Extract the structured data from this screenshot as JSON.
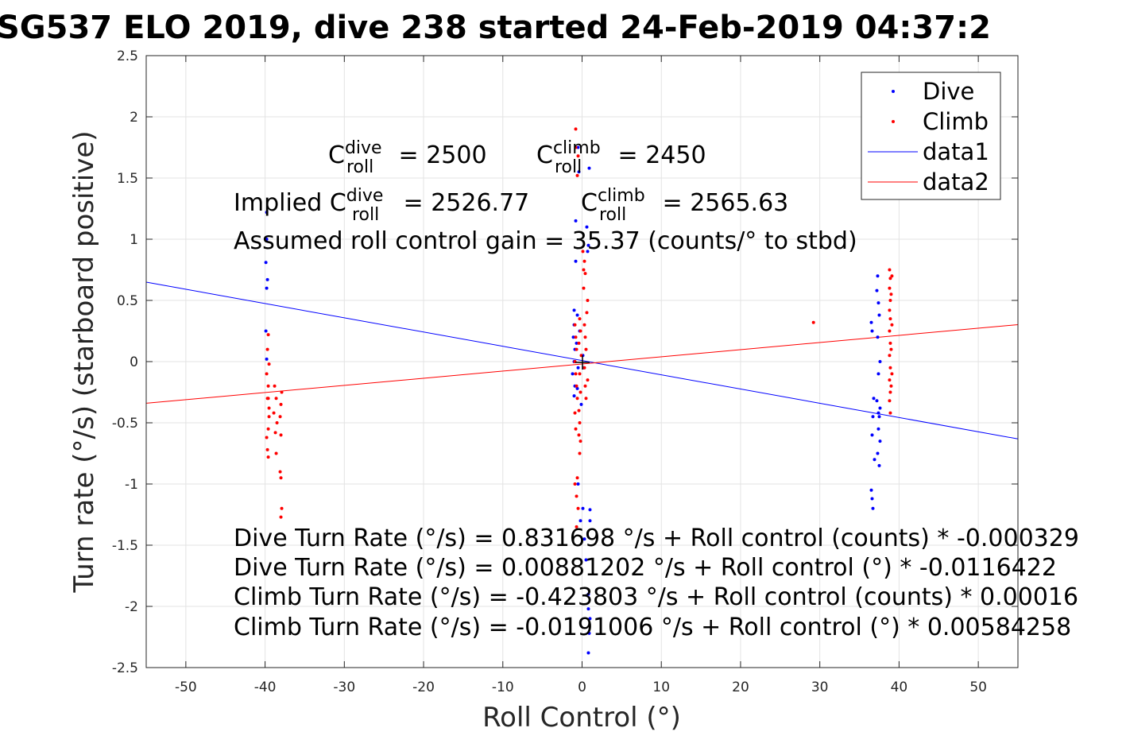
{
  "chart_data": {
    "type": "scatter",
    "title": "SG537 ELO 2019, dive 238 started 24-Feb-2019 04:37:2",
    "xlabel": "Roll Control (°)",
    "ylabel": "Turn rate (°/s) (starboard positive)",
    "xlim": [
      -55,
      55
    ],
    "ylim": [
      -2.5,
      2.5
    ],
    "grid": true,
    "legend_placement": "top-right",
    "x_ticks": [
      "-50",
      "-40",
      "-30",
      "-20",
      "-10",
      "0",
      "10",
      "20",
      "30",
      "40",
      "50"
    ],
    "y_ticks": [
      "2.5",
      "2",
      "1.5",
      "1",
      "0.5",
      "0",
      "-0.5",
      "-1",
      "-1.5",
      "-2",
      "-2.5"
    ],
    "series": [
      {
        "name": "Dive",
        "color": "#0000ff",
        "marker": "point",
        "points": [
          [
            -39.8,
            1.22
          ],
          [
            -39.8,
            1.0
          ],
          [
            -39.9,
            0.81
          ],
          [
            -39.7,
            0.67
          ],
          [
            -39.8,
            0.6
          ],
          [
            -39.9,
            0.25
          ],
          [
            -39.8,
            0.02
          ],
          [
            -1.0,
            0.42
          ],
          [
            -1.0,
            0.3
          ],
          [
            -1.1,
            0.2
          ],
          [
            -0.9,
            0.1
          ],
          [
            -1.0,
            0.0
          ],
          [
            -1.2,
            -0.1
          ],
          [
            -0.9,
            -0.2
          ],
          [
            -1.0,
            -0.28
          ],
          [
            -0.6,
            0.38
          ],
          [
            -0.7,
            0.15
          ],
          [
            -0.5,
            -0.05
          ],
          [
            -0.6,
            -0.22
          ],
          [
            -0.8,
            1.15
          ],
          [
            -0.8,
            0.82
          ],
          [
            -0.5,
            1.75
          ],
          [
            -0.4,
            1.55
          ],
          [
            0.6,
            1.1
          ],
          [
            0.8,
            0.95
          ],
          [
            0.7,
            0.9
          ],
          [
            0.9,
            1.58
          ],
          [
            -0.5,
            -1.0
          ],
          [
            -0.2,
            -1.3
          ],
          [
            0.1,
            -1.2
          ],
          [
            0.3,
            -1.45
          ],
          [
            0.5,
            -1.62
          ],
          [
            0.8,
            -1.9
          ],
          [
            0.8,
            -2.02
          ],
          [
            1.0,
            -2.1
          ],
          [
            0.9,
            -2.22
          ],
          [
            0.8,
            -2.38
          ],
          [
            1.0,
            -1.21
          ],
          [
            1.0,
            -1.3
          ],
          [
            0.1,
            0.05
          ],
          [
            0.2,
            -0.05
          ],
          [
            -0.1,
            -0.35
          ],
          [
            -0.3,
            0.25
          ],
          [
            36.6,
            0.25
          ],
          [
            36.5,
            0.32
          ],
          [
            36.8,
            -0.3
          ],
          [
            36.7,
            -0.45
          ],
          [
            36.6,
            -0.6
          ],
          [
            36.9,
            -0.8
          ],
          [
            36.5,
            -1.05
          ],
          [
            36.6,
            -1.12
          ],
          [
            36.7,
            -1.2
          ],
          [
            37.3,
            0.7
          ],
          [
            37.2,
            0.58
          ],
          [
            37.4,
            0.48
          ],
          [
            37.5,
            0.38
          ],
          [
            37.3,
            0.2
          ],
          [
            37.6,
            0.0
          ],
          [
            37.4,
            -0.1
          ],
          [
            37.2,
            -0.32
          ],
          [
            37.5,
            -0.45
          ],
          [
            37.4,
            -0.55
          ],
          [
            37.6,
            -0.65
          ],
          [
            37.3,
            -0.75
          ],
          [
            37.5,
            -0.85
          ],
          [
            37.4,
            -0.42
          ],
          [
            37.6,
            -0.38
          ]
        ]
      },
      {
        "name": "Climb",
        "color": "#ff0000",
        "marker": "point",
        "points": [
          [
            -39.6,
            0.22
          ],
          [
            -39.7,
            0.1
          ],
          [
            -39.5,
            -0.02
          ],
          [
            -39.8,
            -0.1
          ],
          [
            -39.6,
            -0.2
          ],
          [
            -39.7,
            -0.3
          ],
          [
            -39.5,
            -0.38
          ],
          [
            -39.6,
            -0.55
          ],
          [
            -39.8,
            -0.62
          ],
          [
            -39.7,
            -0.72
          ],
          [
            -39.6,
            -0.78
          ],
          [
            -39.5,
            -0.45
          ],
          [
            -39.6,
            -0.3
          ],
          [
            -38.8,
            -0.2
          ],
          [
            -38.6,
            -0.3
          ],
          [
            -38.9,
            -0.42
          ],
          [
            -38.5,
            -0.5
          ],
          [
            -38.7,
            -0.58
          ],
          [
            -38.6,
            -0.75
          ],
          [
            -38.0,
            -0.35
          ],
          [
            -38.1,
            -0.45
          ],
          [
            -37.9,
            -0.25
          ],
          [
            -38.0,
            -0.6
          ],
          [
            -38.1,
            -0.9
          ],
          [
            -38.0,
            -0.95
          ],
          [
            -37.9,
            -1.2
          ],
          [
            -38.0,
            -1.27
          ],
          [
            -0.9,
            0.3
          ],
          [
            -0.8,
            0.2
          ],
          [
            -0.7,
            0.1
          ],
          [
            -0.9,
            0.0
          ],
          [
            -0.8,
            -0.1
          ],
          [
            -0.7,
            -0.2
          ],
          [
            -0.6,
            -0.3
          ],
          [
            -0.9,
            -0.42
          ],
          [
            -0.8,
            -0.55
          ],
          [
            -0.3,
            0.35
          ],
          [
            -0.2,
            0.25
          ],
          [
            -0.4,
            0.15
          ],
          [
            -0.1,
            0.05
          ],
          [
            -0.3,
            -0.1
          ],
          [
            -0.2,
            -0.25
          ],
          [
            -0.4,
            -0.4
          ],
          [
            -0.3,
            -0.5
          ],
          [
            0.3,
            0.3
          ],
          [
            0.4,
            0.2
          ],
          [
            0.5,
            0.1
          ],
          [
            0.3,
            -0.05
          ],
          [
            0.4,
            -0.2
          ],
          [
            0.5,
            -0.3
          ],
          [
            0.6,
            0.4
          ],
          [
            0.7,
            0.5
          ],
          [
            0.7,
            -0.15
          ],
          [
            0.2,
            0.6
          ],
          [
            0.2,
            0.75
          ],
          [
            0.1,
            0.9
          ],
          [
            0.4,
            0.72
          ],
          [
            0.3,
            0.82
          ],
          [
            -0.8,
            1.9
          ],
          [
            -0.8,
            1.75
          ],
          [
            -0.6,
            1.52
          ],
          [
            -0.5,
            1.68
          ],
          [
            -0.4,
            -0.6
          ],
          [
            -0.3,
            -0.75
          ],
          [
            -0.2,
            -0.65
          ],
          [
            -0.6,
            -0.95
          ],
          [
            -0.9,
            -1.0
          ],
          [
            -0.7,
            -1.1
          ],
          [
            -0.5,
            -1.2
          ],
          [
            -0.7,
            -1.35
          ],
          [
            29.2,
            0.32
          ],
          [
            38.8,
            0.75
          ],
          [
            38.9,
            0.68
          ],
          [
            38.8,
            0.6
          ],
          [
            38.9,
            0.5
          ],
          [
            38.8,
            0.42
          ],
          [
            38.9,
            0.35
          ],
          [
            38.8,
            0.25
          ],
          [
            38.9,
            0.15
          ],
          [
            38.8,
            0.05
          ],
          [
            38.9,
            -0.05
          ],
          [
            38.8,
            -0.15
          ],
          [
            38.9,
            -0.25
          ],
          [
            38.8,
            -0.32
          ],
          [
            38.9,
            -0.42
          ],
          [
            39.1,
            0.7
          ],
          [
            39.0,
            0.55
          ],
          [
            39.1,
            0.3
          ],
          [
            39.0,
            0.1
          ],
          [
            39.1,
            -0.1
          ],
          [
            39.0,
            -0.2
          ]
        ]
      },
      {
        "name": "data1",
        "color": "#0000ff",
        "type": "line",
        "points": [
          [
            -55,
            0.6491
          ],
          [
            55,
            -0.6315
          ]
        ]
      },
      {
        "name": "data2",
        "color": "#ff0000",
        "type": "line",
        "points": [
          [
            -55,
            -0.3404
          ],
          [
            55,
            0.3022
          ]
        ]
      }
    ],
    "annotations": {
      "c_dive": {
        "pre": "C",
        "sup": "dive",
        "sub": "roll",
        "value": " = 2500"
      },
      "c_climb": {
        "pre": "C",
        "sup": "climb",
        "sub": "roll",
        "value": " = 2450"
      },
      "implied_dive": {
        "pre": "Implied C",
        "sup": "dive",
        "sub": "roll",
        "value": " = 2526.77"
      },
      "implied_climb": {
        "pre": "C",
        "sup": "climb",
        "sub": "roll",
        "value": " = 2565.63"
      },
      "gain": "Assumed roll control gain = 35.37 (counts/° to stbd)",
      "equations": [
        "Dive Turn Rate (°/s) = 0.831698 °/s + Roll control (counts) * -0.000329",
        "Dive Turn Rate (°/s) = 0.00881202 °/s + Roll control (°) * -0.0116422",
        "Climb Turn Rate (°/s) = -0.423803 °/s + Roll control (counts) * 0.00016",
        "Climb Turn Rate (°/s) = -0.0191006 °/s + Roll control (°) * 0.00584258"
      ]
    }
  }
}
